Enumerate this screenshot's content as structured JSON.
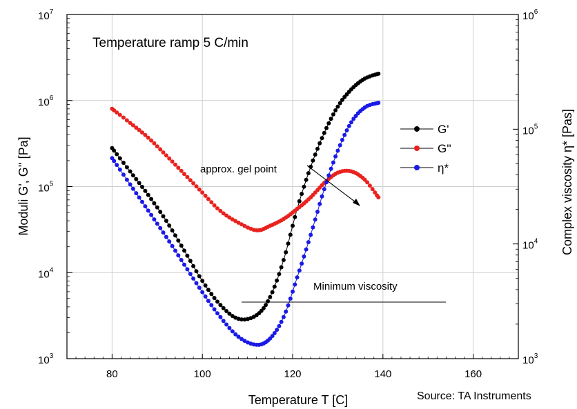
{
  "chart_data": {
    "type": "scatter",
    "title": "Temperature ramp 5 C/min",
    "xlabel": "Temperature T [C]",
    "ylabel_left": "Moduli G', G'' [Pa]",
    "ylabel_right": "Complex viscosity η* [Pas]",
    "xlim": [
      70,
      170
    ],
    "x_ticks": [
      "80",
      "100",
      "120",
      "140",
      "160"
    ],
    "ylim_left": [
      1000,
      10000000
    ],
    "ylim_right": [
      1000,
      1000000
    ],
    "y_scale": "log",
    "left_ticks": [
      {
        "base": "10",
        "exp": "3",
        "value": 1000
      },
      {
        "base": "10",
        "exp": "4",
        "value": 10000
      },
      {
        "base": "10",
        "exp": "5",
        "value": 100000
      },
      {
        "base": "10",
        "exp": "6",
        "value": 1000000
      },
      {
        "base": "10",
        "exp": "7",
        "value": 10000000
      }
    ],
    "right_ticks": [
      {
        "base": "10",
        "exp": "3",
        "value": 1000
      },
      {
        "base": "10",
        "exp": "4",
        "value": 10000
      },
      {
        "base": "10",
        "exp": "5",
        "value": 100000
      },
      {
        "base": "10",
        "exp": "6",
        "value": 1000000
      }
    ],
    "grid": true,
    "legend": "right",
    "series": [
      {
        "name": "G'",
        "axis": "left",
        "color": "#000000",
        "x": [
          80,
          84,
          88,
          92,
          96,
          100,
          104,
          108,
          112,
          115,
          118,
          121,
          124,
          127,
          130,
          133,
          136,
          139
        ],
        "y": [
          280000,
          150000,
          80000,
          40000,
          18000,
          8000,
          4200,
          2900,
          3200,
          5200,
          14000,
          55000,
          170000,
          420000,
          850000,
          1350000,
          1800000,
          2050000
        ]
      },
      {
        "name": "G''",
        "axis": "left",
        "color": "#e8231f",
        "x": [
          80,
          84,
          88,
          92,
          96,
          100,
          104,
          108,
          112,
          115,
          118,
          121,
          124,
          127,
          130,
          133,
          136,
          139
        ],
        "y": [
          800000,
          550000,
          370000,
          230000,
          140000,
          85000,
          52000,
          38000,
          31000,
          35000,
          42000,
          55000,
          75000,
          110000,
          145000,
          150000,
          120000,
          75000
        ]
      },
      {
        "name": "η*",
        "axis": "right",
        "color": "#1a1ae6",
        "x": [
          80,
          84,
          88,
          92,
          96,
          100,
          104,
          108,
          112,
          115,
          118,
          121,
          124,
          127,
          130,
          133,
          136,
          139
        ],
        "y": [
          56000,
          33000,
          19500,
          11500,
          6600,
          3800,
          2300,
          1550,
          1320,
          1500,
          2300,
          5100,
          12000,
          30000,
          65000,
          115000,
          155000,
          170000
        ]
      }
    ],
    "annotations": {
      "gel_point": "approx. gel point",
      "min_viscosity": "Minimum viscosity"
    },
    "source": "Source: TA Instruments"
  }
}
